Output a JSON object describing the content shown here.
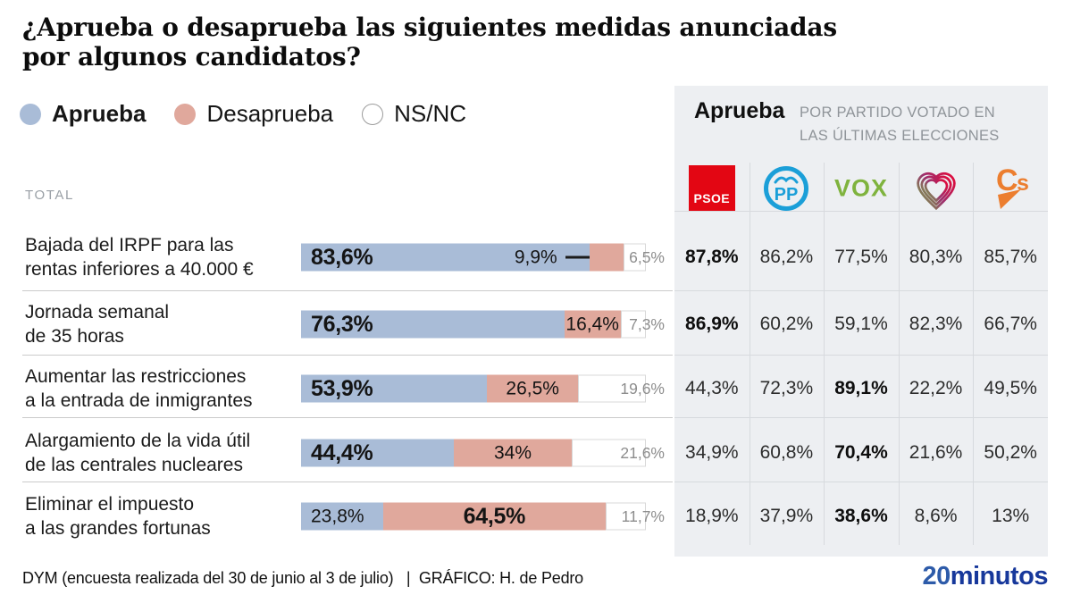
{
  "title": "¿Aprueba o desaprueba las siguientes medidas anunciadas\npor algunos candidatos?",
  "legend": {
    "items": [
      {
        "label": "Aprueba"
      },
      {
        "label": "Desaprueba"
      },
      {
        "label": "NS/NC"
      }
    ]
  },
  "total_label": "TOTAL",
  "panel": {
    "title": "Aprueba",
    "subtitle": "POR PARTIDO VOTADO EN\nLAS ÚLTIMAS ELECCIONES",
    "parties": [
      {
        "name": "PSOE",
        "color": "#e30613"
      },
      {
        "name": "PP",
        "color": "#1b9fd8"
      },
      {
        "name": "VOX",
        "color": "#7fb33e"
      },
      {
        "name": "Podemos",
        "colors": [
          "#76a94b",
          "#9c2f6e",
          "#e00a3c"
        ]
      },
      {
        "name": "Cs",
        "color": "#ec7e2f"
      }
    ]
  },
  "rows": [
    {
      "label": "Bajada del IRPF para las\nrentas inferiores a 40.000 €",
      "aprueba": {
        "value": 83.6,
        "display": "83,6%"
      },
      "desaprueba": {
        "value": 9.9,
        "display": "9,9%",
        "dash": true
      },
      "nsnc": {
        "value": 6.5,
        "display": "6,5%"
      },
      "party_values": [
        "87,8%",
        "86,2%",
        "77,5%",
        "80,3%",
        "85,7%"
      ]
    },
    {
      "label": "Jornada semanal\nde 35 horas",
      "aprueba": {
        "value": 76.3,
        "display": "76,3%"
      },
      "desaprueba": {
        "value": 16.4,
        "display": "16,4%",
        "dash": false
      },
      "nsnc": {
        "value": 7.3,
        "display": "7,3%"
      },
      "party_values": [
        "86,9%",
        "60,2%",
        "59,1%",
        "82,3%",
        "66,7%"
      ]
    },
    {
      "label": "Aumentar las restricciones\na la entrada de inmigrantes",
      "aprueba": {
        "value": 53.9,
        "display": "53,9%"
      },
      "desaprueba": {
        "value": 26.5,
        "display": "26,5%",
        "dash": false
      },
      "nsnc": {
        "value": 19.6,
        "display": "19,6%"
      },
      "party_values": [
        "44,3%",
        "72,3%",
        "89,1%",
        "22,2%",
        "49,5%"
      ]
    },
    {
      "label": "Alargamiento de la vida útil\nde las centrales nucleares",
      "aprueba": {
        "value": 44.4,
        "display": "44,4%"
      },
      "desaprueba": {
        "value": 34,
        "display": "34%",
        "dash": false
      },
      "nsnc": {
        "value": 21.6,
        "display": "21,6%"
      },
      "party_values": [
        "34,9%",
        "60,8%",
        "70,4%",
        "21,6%",
        "50,2%"
      ]
    },
    {
      "label": "Eliminar el impuesto\na las grandes fortunas",
      "aprueba": {
        "value": 23.8,
        "display": "23,8%"
      },
      "desaprueba": {
        "value": 64.5,
        "display": "64,5%",
        "dash": false
      },
      "nsnc": {
        "value": 11.7,
        "display": "11,7%"
      },
      "party_values": [
        "18,9%",
        "37,9%",
        "38,6%",
        "8,6%",
        "13%"
      ]
    }
  ],
  "footer": {
    "source": "DYM (encuesta realizada del 30 de junio al 3 de julio)   |  GRÁFICO: H. de Pedro",
    "brand_part1": "20",
    "brand_part2": "minutos"
  },
  "colors": {
    "aprueba": "#a9bcd7",
    "desaprueba": "#e0a89c",
    "nsnc_fill": "#ffffff",
    "nsnc_text": "#8d8d8d",
    "panel_bg": "#edeff2",
    "brand_20": "#2d5ba9",
    "brand_minutos": "#17389b"
  },
  "chart_data": {
    "type": "bar",
    "subtype": "horizontal-stacked",
    "title": "¿Aprueba o desaprueba las siguientes medidas anunciadas por algunos candidatos?",
    "legend_entries": [
      "Aprueba",
      "Desaprueba",
      "NS/NC"
    ],
    "legend_position": "top-left",
    "group_label": "TOTAL",
    "categories": [
      "Bajada del IRPF para las rentas inferiores a 40.000 €",
      "Jornada semanal de 35 horas",
      "Aumentar las restricciones a la entrada de inmigrantes",
      "Alargamiento de la vida útil de las centrales nucleares",
      "Eliminar el impuesto a las grandes fortunas"
    ],
    "series": [
      {
        "name": "Aprueba",
        "values": [
          83.6,
          76.3,
          53.9,
          44.4,
          23.8
        ]
      },
      {
        "name": "Desaprueba",
        "values": [
          9.9,
          16.4,
          26.5,
          34,
          64.5
        ]
      },
      {
        "name": "NS/NC",
        "values": [
          6.5,
          7.3,
          19.6,
          21.6,
          11.7
        ]
      }
    ],
    "xlim": [
      0,
      100
    ],
    "grid": false,
    "side_table": {
      "title": "Aprueba POR PARTIDO VOTADO EN LAS ÚLTIMAS ELECCIONES",
      "columns": [
        "PSOE",
        "PP",
        "VOX",
        "Podemos",
        "Cs"
      ],
      "rows": [
        [
          87.8,
          86.2,
          77.5,
          80.3,
          85.7
        ],
        [
          86.9,
          60.2,
          59.1,
          82.3,
          66.7
        ],
        [
          44.3,
          72.3,
          89.1,
          22.2,
          49.5
        ],
        [
          34.9,
          60.8,
          70.4,
          21.6,
          50.2
        ],
        [
          18.9,
          37.9,
          38.6,
          8.6,
          13
        ]
      ],
      "bold_max_per_row": true
    },
    "source": "DYM (encuesta realizada del 30 de junio al 3 de julio)",
    "credit": "GRÁFICO: H. de Pedro"
  }
}
